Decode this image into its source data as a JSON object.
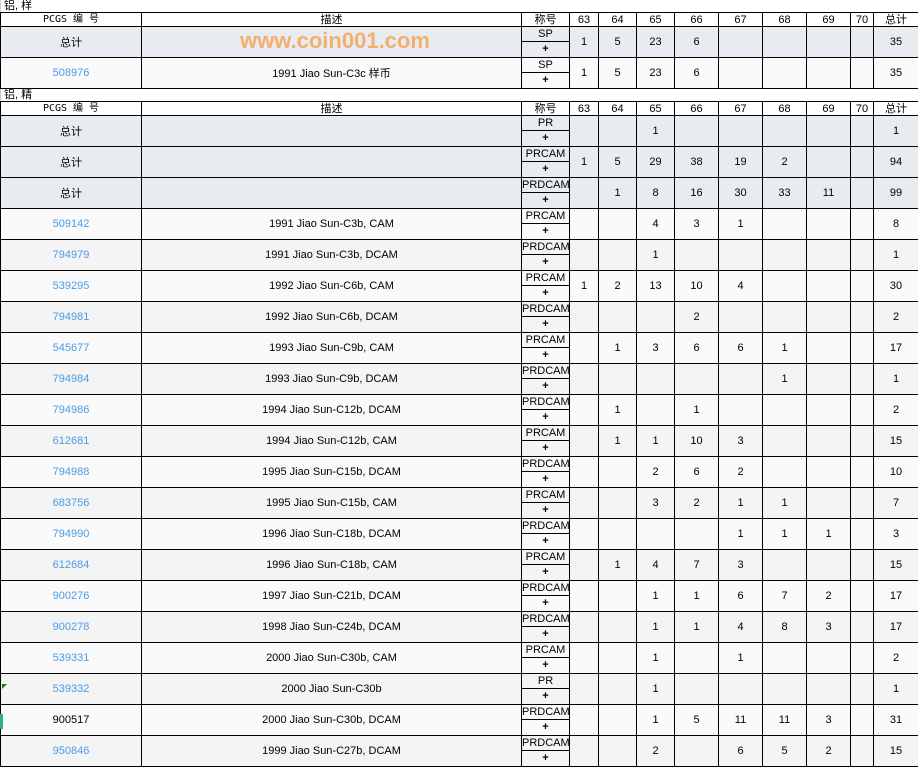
{
  "headers": {
    "pcgs": "PCGS 编 号",
    "desc": "描述",
    "grade": "称号",
    "cols": [
      "63",
      "64",
      "65",
      "66",
      "67",
      "68",
      "69",
      "70"
    ],
    "total": "总计"
  },
  "plus": "+",
  "sections": [
    {
      "title": "铝, 样",
      "rows": [
        {
          "type": "total",
          "id": "总计",
          "desc": "",
          "grade": "SP",
          "vals": [
            "1",
            "5",
            "23",
            "6",
            "",
            "",
            "",
            ""
          ],
          "total": "35"
        },
        {
          "type": "item",
          "id": "508976",
          "desc": "1991 Jiao Sun-C3c 样币",
          "grade": "SP",
          "vals": [
            "1",
            "5",
            "23",
            "6",
            "",
            "",
            "",
            ""
          ],
          "total": "35"
        }
      ]
    },
    {
      "title": "铝, 精",
      "rows": [
        {
          "type": "total",
          "id": "总计",
          "desc": "",
          "grade": "PR",
          "vals": [
            "",
            "",
            "1",
            "",
            "",
            "",
            "",
            ""
          ],
          "total": "1"
        },
        {
          "type": "total",
          "id": "总计",
          "desc": "",
          "grade": "PRCAM",
          "vals": [
            "1",
            "5",
            "29",
            "38",
            "19",
            "2",
            "",
            ""
          ],
          "total": "94"
        },
        {
          "type": "total",
          "id": "总计",
          "desc": "",
          "grade": "PRDCAM",
          "vals": [
            "",
            "1",
            "8",
            "16",
            "30",
            "33",
            "11",
            ""
          ],
          "total": "99"
        },
        {
          "type": "item",
          "id": "509142",
          "desc": "1991 Jiao Sun-C3b, CAM",
          "grade": "PRCAM",
          "vals": [
            "",
            "",
            "4",
            "3",
            "1",
            "",
            "",
            ""
          ],
          "total": "8"
        },
        {
          "type": "item",
          "id": "794979",
          "desc": "1991 Jiao Sun-C3b, DCAM",
          "grade": "PRDCAM",
          "vals": [
            "",
            "",
            "1",
            "",
            "",
            "",
            "",
            ""
          ],
          "total": "1"
        },
        {
          "type": "item",
          "id": "539295",
          "desc": "1992 Jiao Sun-C6b, CAM",
          "grade": "PRCAM",
          "vals": [
            "1",
            "2",
            "13",
            "10",
            "4",
            "",
            "",
            ""
          ],
          "total": "30"
        },
        {
          "type": "item",
          "id": "794981",
          "desc": "1992 Jiao Sun-C6b, DCAM",
          "grade": "PRDCAM",
          "vals": [
            "",
            "",
            "",
            "2",
            "",
            "",
            "",
            ""
          ],
          "total": "2"
        },
        {
          "type": "item",
          "id": "545677",
          "desc": "1993 Jiao Sun-C9b, CAM",
          "grade": "PRCAM",
          "vals": [
            "",
            "1",
            "3",
            "6",
            "6",
            "1",
            "",
            ""
          ],
          "total": "17"
        },
        {
          "type": "item",
          "id": "794984",
          "desc": "1993 Jiao Sun-C9b, DCAM",
          "grade": "PRDCAM",
          "vals": [
            "",
            "",
            "",
            "",
            "",
            "1",
            "",
            ""
          ],
          "total": "1"
        },
        {
          "type": "item",
          "id": "794986",
          "desc": "1994 Jiao Sun-C12b, DCAM",
          "grade": "PRDCAM",
          "vals": [
            "",
            "1",
            "",
            "1",
            "",
            "",
            "",
            ""
          ],
          "total": "2"
        },
        {
          "type": "item",
          "id": "612681",
          "desc": "1994 Jiao Sun-C12b, CAM",
          "grade": "PRCAM",
          "vals": [
            "",
            "1",
            "1",
            "10",
            "3",
            "",
            "",
            ""
          ],
          "total": "15"
        },
        {
          "type": "item",
          "id": "794988",
          "desc": "1995 Jiao Sun-C15b, DCAM",
          "grade": "PRDCAM",
          "vals": [
            "",
            "",
            "2",
            "6",
            "2",
            "",
            "",
            ""
          ],
          "total": "10"
        },
        {
          "type": "item",
          "id": "683756",
          "desc": "1995 Jiao Sun-C15b, CAM",
          "grade": "PRCAM",
          "vals": [
            "",
            "",
            "3",
            "2",
            "1",
            "1",
            "",
            ""
          ],
          "total": "7"
        },
        {
          "type": "item",
          "id": "794990",
          "desc": "1996 Jiao Sun-C18b, DCAM",
          "grade": "PRDCAM",
          "vals": [
            "",
            "",
            "",
            "",
            "1",
            "1",
            "1",
            ""
          ],
          "total": "3"
        },
        {
          "type": "item",
          "id": "612684",
          "desc": "1996 Jiao Sun-C18b, CAM",
          "grade": "PRCAM",
          "vals": [
            "",
            "1",
            "4",
            "7",
            "3",
            "",
            "",
            ""
          ],
          "total": "15"
        },
        {
          "type": "item",
          "id": "900276",
          "desc": "1997 Jiao Sun-C21b, DCAM",
          "grade": "PRDCAM",
          "vals": [
            "",
            "",
            "1",
            "1",
            "6",
            "7",
            "2",
            ""
          ],
          "total": "17"
        },
        {
          "type": "item",
          "id": "900278",
          "desc": "1998 Jiao Sun-C24b, DCAM",
          "grade": "PRDCAM",
          "vals": [
            "",
            "",
            "1",
            "1",
            "4",
            "8",
            "3",
            ""
          ],
          "total": "17"
        },
        {
          "type": "item",
          "id": "539331",
          "desc": "2000 Jiao Sun-C30b, CAM",
          "grade": "PRCAM",
          "vals": [
            "",
            "",
            "1",
            "",
            "1",
            "",
            "",
            ""
          ],
          "total": "2"
        },
        {
          "type": "item",
          "id": "539332",
          "desc": "2000 Jiao Sun-C30b",
          "grade": "PR",
          "vals": [
            "",
            "",
            "1",
            "",
            "",
            "",
            "",
            ""
          ],
          "total": "1"
        },
        {
          "type": "item",
          "id": "900517",
          "desc": "2000 Jiao Sun-C30b, DCAM",
          "grade": "PRDCAM",
          "vals": [
            "",
            "",
            "1",
            "5",
            "11",
            "11",
            "3",
            ""
          ],
          "total": "31",
          "nolink": true
        },
        {
          "type": "item",
          "id": "950846",
          "desc": "1999 Jiao Sun-C27b, DCAM",
          "grade": "PRDCAM",
          "vals": [
            "",
            "",
            "2",
            "",
            "6",
            "5",
            "2",
            ""
          ],
          "total": "15"
        }
      ]
    }
  ],
  "watermark": "www.coin001.com",
  "colors": {
    "link": "#4a9be8",
    "total_bg": "#e8ecf0",
    "watermark": "#f5a050"
  }
}
